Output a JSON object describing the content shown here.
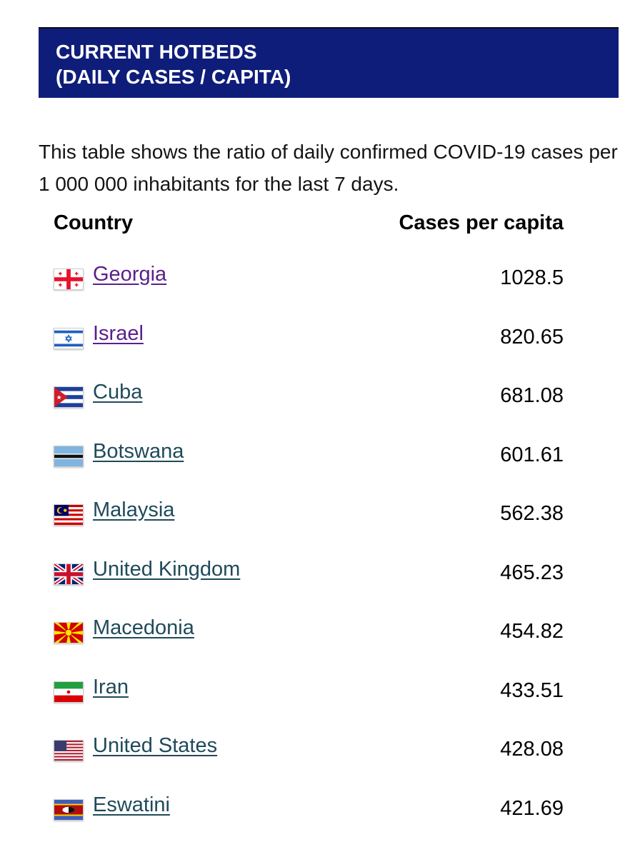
{
  "header": {
    "line1": "CURRENT HOTBEDS",
    "line2": "(DAILY CASES / CAPITA)"
  },
  "intro": "This table shows the ratio of daily confirmed COVID-19 cases per 1 000 000 inhabitants for the last 7 days.",
  "table": {
    "col_country": "Country",
    "col_cases": "Cases per capita",
    "rows": [
      {
        "country": "Georgia",
        "value": "1028.5",
        "flag": "georgia-flag-icon",
        "visited": true
      },
      {
        "country": "Israel",
        "value": "820.65",
        "flag": "israel-flag-icon",
        "visited": true
      },
      {
        "country": "Cuba",
        "value": "681.08",
        "flag": "cuba-flag-icon",
        "visited": false
      },
      {
        "country": "Botswana",
        "value": "601.61",
        "flag": "botswana-flag-icon",
        "visited": false
      },
      {
        "country": "Malaysia",
        "value": "562.38",
        "flag": "malaysia-flag-icon",
        "visited": false
      },
      {
        "country": "United Kingdom",
        "value": "465.23",
        "flag": "uk-flag-icon",
        "visited": false
      },
      {
        "country": "Macedonia",
        "value": "454.82",
        "flag": "macedonia-flag-icon",
        "visited": false
      },
      {
        "country": "Iran",
        "value": "433.51",
        "flag": "iran-flag-icon",
        "visited": false
      },
      {
        "country": "United States",
        "value": "428.08",
        "flag": "us-flag-icon",
        "visited": false
      },
      {
        "country": "Eswatini",
        "value": "421.69",
        "flag": "eswatini-flag-icon",
        "visited": false
      }
    ]
  },
  "colors": {
    "header_bg": "#0f1d7a",
    "link": "#1f4a5a",
    "link_visited": "#5b1f8a"
  }
}
